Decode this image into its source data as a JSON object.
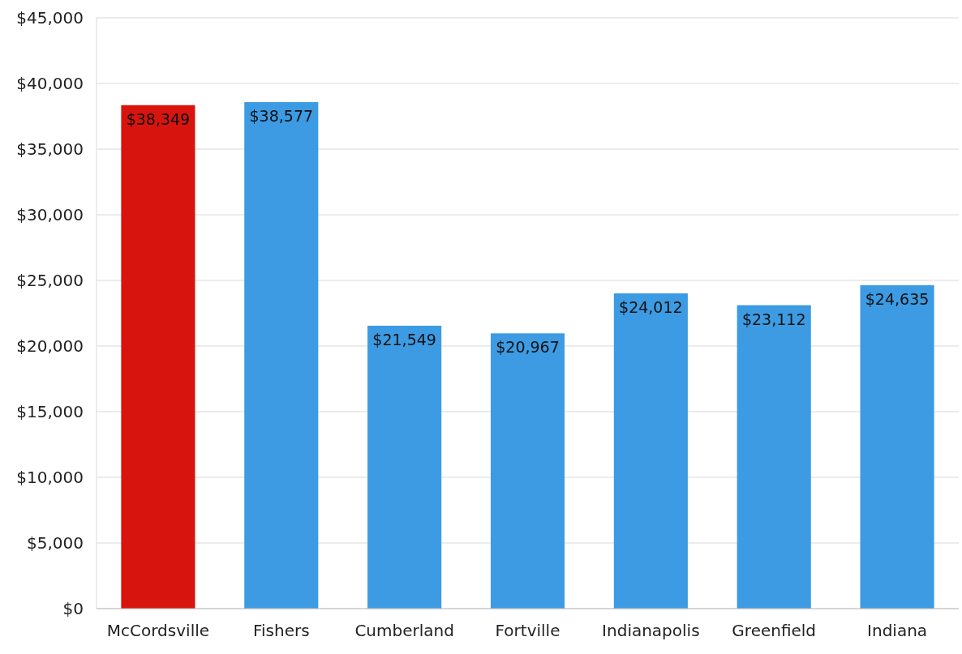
{
  "chart_data": {
    "type": "bar",
    "categories": [
      "McCordsville",
      "Fishers",
      "Cumberland",
      "Fortville",
      "Indianapolis",
      "Greenfield",
      "Indiana"
    ],
    "values": [
      38349,
      38577,
      21549,
      20967,
      24012,
      23112,
      24635
    ],
    "colors": [
      "#d8140e",
      "#3c9be2",
      "#3c9be2",
      "#3c9be2",
      "#3c9be2",
      "#3c9be2",
      "#3c9be2"
    ],
    "value_labels": [
      "$38,349",
      "$38,577",
      "$21,549",
      "$20,967",
      "$24,012",
      "$23,112",
      "$24,635"
    ],
    "ylim": [
      0,
      45000
    ],
    "yticks": [
      {
        "value": 0,
        "label": "$0"
      },
      {
        "value": 5000,
        "label": "$5,000"
      },
      {
        "value": 10000,
        "label": "$10,000"
      },
      {
        "value": 15000,
        "label": "$15,000"
      },
      {
        "value": 20000,
        "label": "$20,000"
      },
      {
        "value": 25000,
        "label": "$25,000"
      },
      {
        "value": 30000,
        "label": "$30,000"
      },
      {
        "value": 35000,
        "label": "$35,000"
      },
      {
        "value": 40000,
        "label": "$40,000"
      },
      {
        "value": 45000,
        "label": "$45,000"
      }
    ],
    "grid": "y"
  }
}
